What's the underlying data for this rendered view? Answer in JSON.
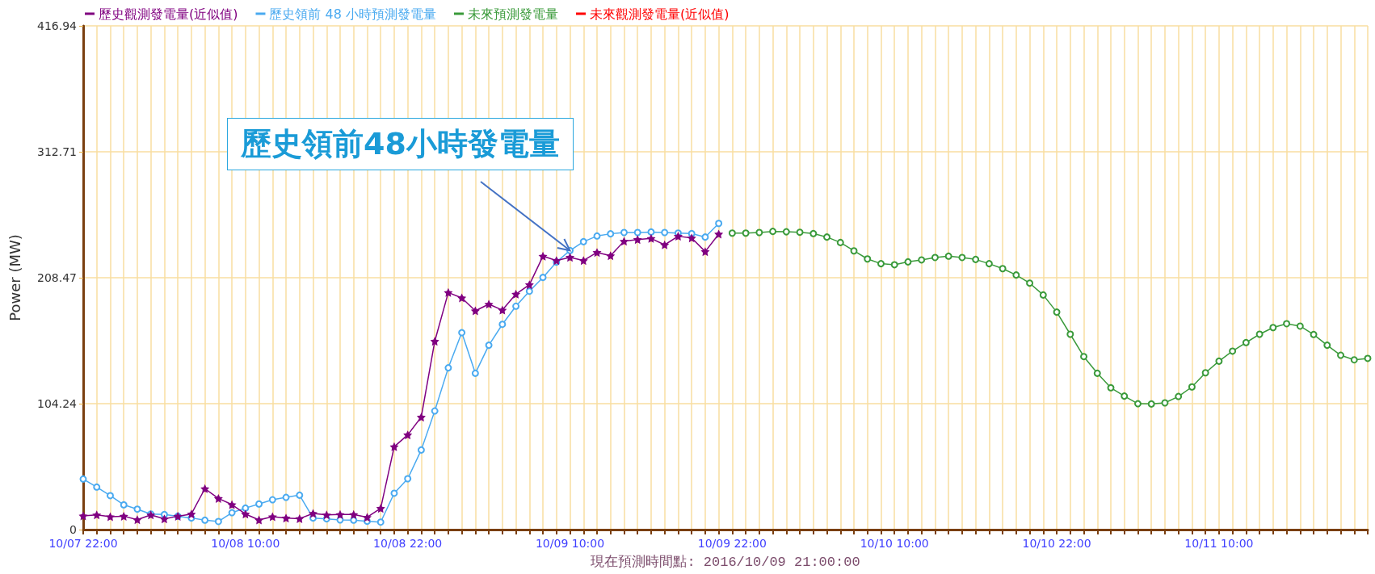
{
  "chart_data": {
    "type": "line",
    "categories": [
      "10/07 22:00",
      null,
      null,
      null,
      null,
      null,
      null,
      null,
      null,
      null,
      null,
      null,
      "10/08 10:00",
      null,
      null,
      null,
      null,
      null,
      null,
      null,
      null,
      null,
      null,
      null,
      "10/08 22:00",
      null,
      null,
      null,
      null,
      null,
      null,
      null,
      null,
      null,
      null,
      null,
      "10/09 10:00",
      null,
      null,
      null,
      null,
      null,
      null,
      null,
      null,
      null,
      null,
      null,
      "10/09 22:00",
      null,
      null,
      null,
      null,
      null,
      null,
      null,
      null,
      null,
      null,
      null,
      "10/10 10:00",
      null,
      null,
      null,
      null,
      null,
      null,
      null,
      null,
      null,
      null,
      null,
      "10/10 22:00",
      null,
      null,
      null,
      null,
      null,
      null,
      null,
      null,
      null,
      null,
      null,
      "10/11 10:00",
      null,
      null,
      null,
      null,
      null,
      null,
      null,
      null,
      null,
      null,
      null
    ],
    "series": [
      {
        "name": "歷史觀測發電量(近似值)",
        "color": "#800080",
        "marker": "star",
        "values": [
          11.4,
          12.2,
          10.7,
          11.1,
          8.2,
          12.2,
          8.9,
          11.1,
          12.9,
          33.9,
          25.8,
          20.7,
          12.9,
          8.0,
          10.7,
          9.6,
          9.1,
          13.4,
          12.2,
          12.5,
          12.5,
          10.2,
          17.6,
          68.6,
          78.4,
          93.1,
          155.9,
          196.2,
          191.8,
          181.1,
          186.6,
          181.7,
          194.9,
          202.7,
          226.3,
          222.7,
          225.4,
          222.7,
          229.4,
          226.7,
          238.7,
          240.1,
          241.0,
          235.7,
          242.8,
          241.4,
          230.1,
          244.6,
          null,
          null,
          null,
          null,
          null,
          null,
          null,
          null,
          null,
          null,
          null,
          null,
          null,
          null,
          null,
          null,
          null,
          null,
          null,
          null,
          null,
          null,
          null,
          null,
          null,
          null,
          null,
          null,
          null,
          null,
          null,
          null,
          null,
          null,
          null,
          null,
          null,
          null,
          null,
          null,
          null,
          null,
          null,
          null,
          null,
          null,
          null,
          null
        ]
      },
      {
        "name": "歷史領前 48 小時預測發電量",
        "color": "#4aaaf0",
        "marker": "circle",
        "values": [
          41.9,
          35.2,
          28.1,
          20.5,
          16.9,
          12.9,
          12.5,
          11.1,
          9.6,
          7.8,
          6.7,
          14.0,
          17.8,
          21.2,
          24.7,
          26.7,
          28.5,
          9.6,
          8.9,
          8.0,
          7.8,
          6.9,
          6.2,
          30.1,
          42.1,
          65.9,
          98.2,
          133.9,
          163.0,
          129.4,
          152.6,
          169.9,
          184.9,
          197.3,
          208.7,
          221.4,
          231.0,
          238.3,
          243.0,
          244.8,
          245.9,
          245.9,
          246.3,
          245.9,
          245.4,
          245.0,
          242.1,
          253.4,
          null,
          null,
          null,
          null,
          null,
          null,
          null,
          null,
          null,
          null,
          null,
          null,
          null,
          null,
          null,
          null,
          null,
          null,
          null,
          null,
          null,
          null,
          null,
          null,
          null,
          null,
          null,
          null,
          null,
          null,
          null,
          null,
          null,
          null,
          null,
          null,
          null,
          null,
          null,
          null,
          null,
          null,
          null,
          null,
          null,
          null,
          null,
          null
        ]
      },
      {
        "name": "未來預測發電量",
        "color": "#3a9a3a",
        "marker": "circle",
        "values": [
          null,
          null,
          null,
          null,
          null,
          null,
          null,
          null,
          null,
          null,
          null,
          null,
          null,
          null,
          null,
          null,
          null,
          null,
          null,
          null,
          null,
          null,
          null,
          null,
          null,
          null,
          null,
          null,
          null,
          null,
          null,
          null,
          null,
          null,
          null,
          null,
          null,
          null,
          null,
          null,
          null,
          null,
          null,
          null,
          null,
          null,
          null,
          null,
          245.4,
          245.4,
          245.9,
          246.8,
          246.5,
          246.1,
          245.0,
          242.1,
          237.6,
          230.7,
          224.0,
          220.1,
          219.2,
          221.6,
          223.2,
          225.2,
          226.3,
          225.2,
          223.6,
          220.1,
          216.0,
          210.7,
          204.0,
          194.2,
          180.0,
          161.7,
          143.2,
          129.4,
          117.4,
          110.5,
          104.2,
          104.0,
          104.9,
          110.2,
          118.1,
          129.8,
          139.4,
          147.7,
          154.8,
          161.7,
          167.2,
          170.4,
          168.4,
          161.5,
          152.6,
          144.3,
          140.5,
          141.7
        ]
      },
      {
        "name": "未來觀測發電量(近似值)",
        "color": "#ff0000",
        "marker": "circle",
        "values": [
          null,
          null,
          null,
          null,
          null,
          null,
          null,
          null,
          null,
          null,
          null,
          null,
          null,
          null,
          null,
          null,
          null,
          null,
          null,
          null,
          null,
          null,
          null,
          null,
          null,
          null,
          null,
          null,
          null,
          null,
          null,
          null,
          null,
          null,
          null,
          null,
          null,
          null,
          null,
          null,
          null,
          null,
          null,
          null,
          null,
          null,
          null,
          null,
          null,
          null,
          null,
          null,
          null,
          null,
          null,
          null,
          null,
          null,
          null,
          null,
          null,
          null,
          null,
          null,
          null,
          null,
          null,
          null,
          null,
          null,
          null,
          null,
          null,
          null,
          null,
          null,
          null,
          null,
          null,
          null,
          null,
          null,
          null,
          null,
          null,
          null,
          null,
          null,
          null,
          null,
          null,
          null,
          null,
          null,
          null,
          null
        ]
      }
    ],
    "ylabel": "Power (MW)",
    "xlabel": "現在預測時間點: 2016/10/09 21:00:00",
    "ylim": [
      0,
      416.94
    ],
    "yticks": [
      0,
      104.24,
      208.47,
      312.71,
      416.94
    ],
    "grid": true,
    "legend": "top left",
    "annotations": [
      {
        "text": "歷史領前48小時發電量",
        "x": "10/09 10:00",
        "y": 231.0
      }
    ]
  }
}
